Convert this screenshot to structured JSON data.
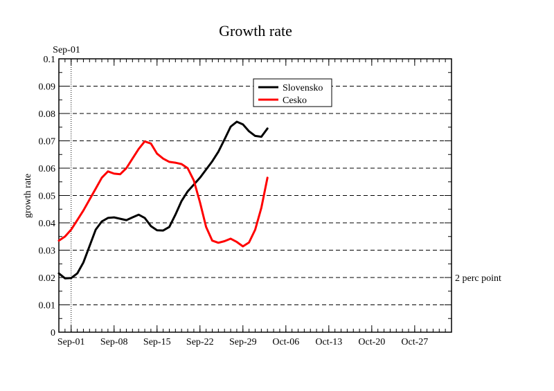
{
  "chart_data": {
    "type": "line",
    "title": "Growth rate",
    "xlabel": "",
    "ylabel": "growth rate",
    "top_marker_label": "Sep-01",
    "annotation": {
      "text": "2 perc point",
      "y": 0.02
    },
    "ylim": [
      0,
      0.1
    ],
    "yticks": [
      0,
      0.01,
      0.02,
      0.03,
      0.04,
      0.05,
      0.06,
      0.07,
      0.08,
      0.09,
      0.1
    ],
    "ytick_labels": [
      "0",
      "0.01",
      "0.02",
      "0.03",
      "0.04",
      "0.05",
      "0.06",
      "0.07",
      "0.08",
      "0.09",
      "0.1"
    ],
    "xlim": [
      "2020-08-30",
      "2020-11-02"
    ],
    "xticks": [
      "2020-09-01",
      "2020-09-08",
      "2020-09-15",
      "2020-09-22",
      "2020-09-29",
      "2020-10-06",
      "2020-10-13",
      "2020-10-20",
      "2020-10-27"
    ],
    "xtick_labels": [
      "Sep-01",
      "Sep-08",
      "Sep-15",
      "Sep-22",
      "Sep-29",
      "Oct-06",
      "Oct-13",
      "Oct-20",
      "Oct-27"
    ],
    "grid": "horizontal dashed",
    "legend_position": "top-center",
    "series": [
      {
        "name": "Slovensko",
        "color": "#000000",
        "x": [
          "2020-08-30",
          "2020-08-31",
          "2020-09-01",
          "2020-09-02",
          "2020-09-03",
          "2020-09-04",
          "2020-09-05",
          "2020-09-06",
          "2020-09-07",
          "2020-09-08",
          "2020-09-09",
          "2020-09-10",
          "2020-09-11",
          "2020-09-12",
          "2020-09-13",
          "2020-09-14",
          "2020-09-15",
          "2020-09-16",
          "2020-09-17",
          "2020-09-18",
          "2020-09-19",
          "2020-09-20",
          "2020-09-21",
          "2020-09-22",
          "2020-09-23",
          "2020-09-24",
          "2020-09-25",
          "2020-09-26",
          "2020-09-27",
          "2020-09-28",
          "2020-09-29",
          "2020-09-30",
          "2020-10-01",
          "2020-10-02",
          "2020-10-03"
        ],
        "values": [
          0.0215,
          0.0197,
          0.0198,
          0.0215,
          0.0255,
          0.0315,
          0.0375,
          0.0405,
          0.0418,
          0.042,
          0.0415,
          0.041,
          0.042,
          0.043,
          0.0418,
          0.0388,
          0.0373,
          0.0372,
          0.0385,
          0.043,
          0.048,
          0.0515,
          0.054,
          0.0565,
          0.0595,
          0.0625,
          0.066,
          0.0705,
          0.0752,
          0.077,
          0.076,
          0.0735,
          0.0718,
          0.0715,
          0.0745
        ]
      },
      {
        "name": "Cesko",
        "color": "#ff0000",
        "x": [
          "2020-08-30",
          "2020-08-31",
          "2020-09-01",
          "2020-09-02",
          "2020-09-03",
          "2020-09-04",
          "2020-09-05",
          "2020-09-06",
          "2020-09-07",
          "2020-09-08",
          "2020-09-09",
          "2020-09-10",
          "2020-09-11",
          "2020-09-12",
          "2020-09-13",
          "2020-09-14",
          "2020-09-15",
          "2020-09-16",
          "2020-09-17",
          "2020-09-18",
          "2020-09-19",
          "2020-09-20",
          "2020-09-21",
          "2020-09-22",
          "2020-09-23",
          "2020-09-24",
          "2020-09-25",
          "2020-09-26",
          "2020-09-27",
          "2020-09-28",
          "2020-09-29",
          "2020-09-30",
          "2020-10-01",
          "2020-10-02",
          "2020-10-03"
        ],
        "values": [
          0.0335,
          0.035,
          0.0375,
          0.041,
          0.0445,
          0.0485,
          0.0525,
          0.0565,
          0.0588,
          0.058,
          0.0578,
          0.06,
          0.0635,
          0.067,
          0.0698,
          0.069,
          0.0653,
          0.0635,
          0.0623,
          0.062,
          0.0615,
          0.06,
          0.0555,
          0.0475,
          0.0385,
          0.0335,
          0.0327,
          0.0333,
          0.0342,
          0.033,
          0.0314,
          0.0328,
          0.0375,
          0.0455,
          0.0565
        ]
      }
    ]
  }
}
